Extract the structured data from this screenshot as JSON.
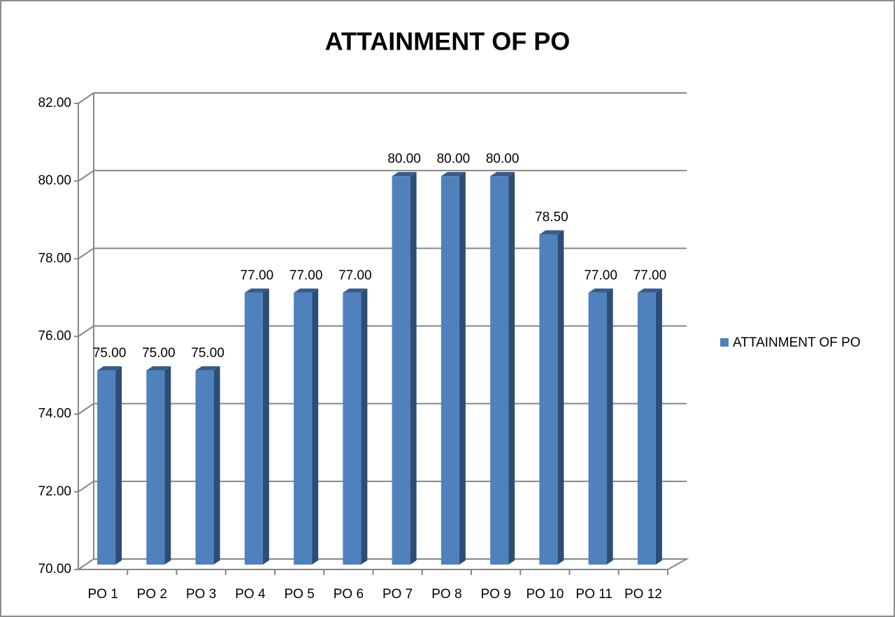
{
  "chart_data": {
    "type": "bar3d",
    "title": "ATTAINMENT OF PO",
    "categories": [
      "PO 1",
      "PO 2",
      "PO 3",
      "PO 4",
      "PO 5",
      "PO 6",
      "PO 7",
      "PO 8",
      "PO 9",
      "PO 10",
      "PO 11",
      "PO 12"
    ],
    "series": [
      {
        "name": "ATTAINMENT OF PO",
        "color": "#4f81bd",
        "values": [
          75,
          75,
          75,
          77,
          77,
          77,
          80,
          80,
          80,
          78.5,
          77,
          77
        ],
        "value_labels": [
          "75.00",
          "75.00",
          "75.00",
          "77.00",
          "77.00",
          "77.00",
          "80.00",
          "80.00",
          "80.00",
          "78.50",
          "77.00",
          "77.00"
        ]
      }
    ],
    "ylim": [
      70,
      82
    ],
    "yticks": [
      {
        "value": 70,
        "label": "70.00"
      },
      {
        "value": 72,
        "label": "72.00"
      },
      {
        "value": 74,
        "label": "74.00"
      },
      {
        "value": 76,
        "label": "76.00"
      },
      {
        "value": 78,
        "label": "78.00"
      },
      {
        "value": 80,
        "label": "80.00"
      },
      {
        "value": 82,
        "label": "82.00"
      }
    ],
    "grid": true,
    "legend": "right"
  }
}
